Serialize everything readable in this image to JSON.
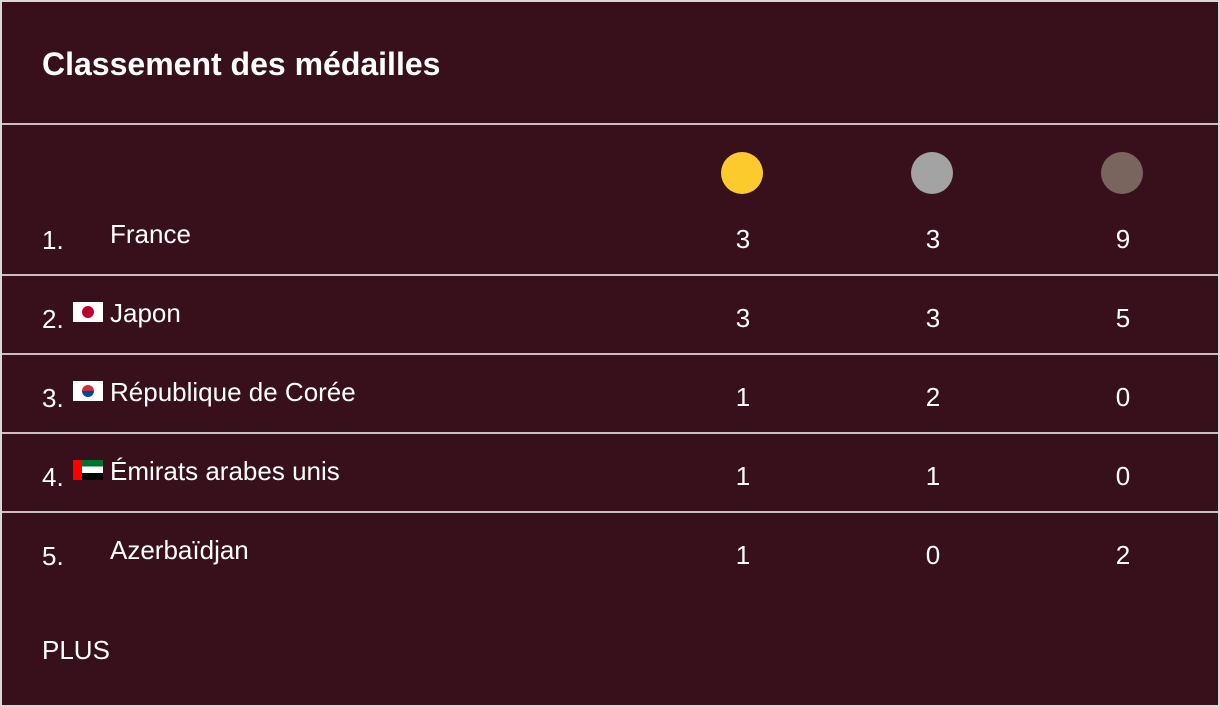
{
  "header": {
    "title": "Classement des médailles"
  },
  "table": {
    "rows": [
      [
        "1.",
        "France",
        3,
        3,
        9
      ],
      [
        "2.",
        "Japon",
        3,
        3,
        5
      ],
      [
        "3.",
        "République de Corée",
        1,
        2,
        0
      ],
      [
        "4.",
        "Émirats arabes unis",
        1,
        1,
        0
      ],
      [
        "5.",
        "Azerbaïdjan",
        1,
        0,
        2
      ]
    ]
  },
  "footer": {
    "link": "PLUS"
  }
}
